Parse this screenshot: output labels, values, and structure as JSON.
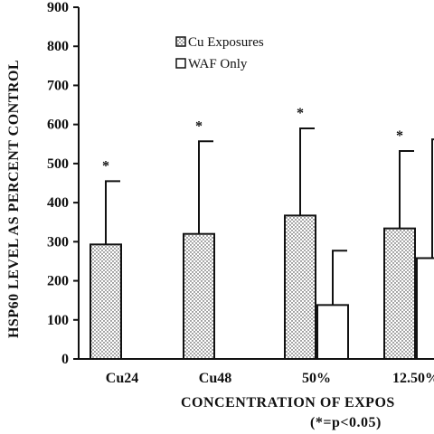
{
  "chart_data": {
    "type": "bar",
    "categories": [
      "Cu24",
      "Cu48",
      "50%",
      "12.50%"
    ],
    "series": [
      {
        "name": "Cu Exposures",
        "values": [
          293,
          320,
          367,
          334
        ],
        "error_upper": [
          455,
          557,
          590,
          532
        ],
        "significant": [
          true,
          true,
          true,
          true
        ]
      },
      {
        "name": "WAF Only",
        "values": [
          null,
          null,
          138,
          258
        ],
        "error_upper": [
          null,
          null,
          277,
          562
        ],
        "significant": [
          false,
          false,
          false,
          false
        ]
      }
    ],
    "ylim": [
      0,
      900
    ],
    "yticks": [
      0,
      100,
      200,
      300,
      400,
      500,
      600,
      700,
      800,
      900
    ],
    "ylabel": "HSP60 LEVEL AS PERCENT CONTROL",
    "xlabel": "CONCENTRATION OF EXPOS",
    "note": "(*=p<0.05)",
    "significance_marker": "*",
    "legend_position": "top-center",
    "grid": false
  }
}
